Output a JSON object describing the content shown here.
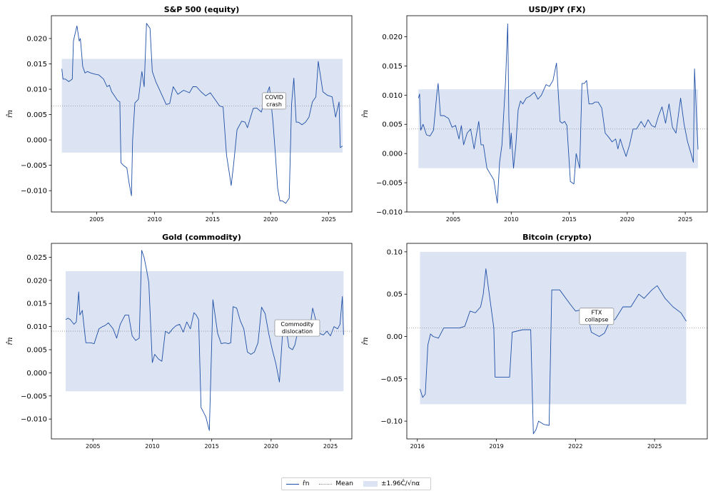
{
  "legend": {
    "series_label": "r̂n",
    "mean_label": "Mean",
    "band_label": "±1.96Ĉ/√nα"
  },
  "colors": {
    "line": "#1f4fa6",
    "band": "#dce4f3",
    "mean": "#8c8c8c"
  },
  "chart_data": [
    {
      "type": "line",
      "title": "S&P 500 (equity)",
      "ylabel": "r̂n",
      "xlim": [
        2001.1,
        2027.0
      ],
      "ylim": [
        -0.0142,
        0.0245
      ],
      "xticks": [
        2005,
        2010,
        2015,
        2020,
        2025
      ],
      "yticks": [
        -0.01,
        -0.005,
        0.0,
        0.005,
        0.01,
        0.015,
        0.02
      ],
      "ytick_labels": [
        "−0.010",
        "−0.005",
        "0.000",
        "0.005",
        "0.010",
        "0.015",
        "0.020"
      ],
      "mean": 0.0067,
      "band": [
        -0.0025,
        0.016
      ],
      "band_x": [
        2002.0,
        2026.2
      ],
      "annotation": {
        "text": [
          "COVID",
          "crash"
        ],
        "x": 2020.3,
        "y": 0.0077
      },
      "series": [
        {
          "x": [
            2002.0,
            2002.1,
            2002.3,
            2002.6,
            2002.9,
            2003.0,
            2003.1,
            2003.3,
            2003.5,
            2003.6,
            2003.8,
            2004.0,
            2004.2,
            2004.5,
            2004.8,
            2005.2,
            2005.6,
            2005.9,
            2006.1,
            2006.3,
            2006.6,
            2006.8,
            2007.0,
            2007.1,
            2007.3,
            2007.6,
            2007.8,
            2008.0,
            2008.1,
            2008.3,
            2008.6,
            2008.9,
            2009.1,
            2009.3,
            2009.6,
            2009.8,
            2010.1,
            2010.5,
            2011.0,
            2011.3,
            2011.6,
            2012.0,
            2012.5,
            2013.0,
            2013.3,
            2013.6,
            2014.0,
            2014.4,
            2014.8,
            2015.2,
            2015.6,
            2015.9,
            2016.2,
            2016.4,
            2016.6,
            2016.8,
            2017.1,
            2017.5,
            2017.8,
            2018.0,
            2018.2,
            2018.5,
            2018.8,
            2019.2,
            2019.5,
            2019.9,
            2020.2,
            2020.4,
            2020.6,
            2020.8,
            2021.0,
            2021.3,
            2021.6,
            2021.8,
            2022.0,
            2022.2,
            2022.4,
            2022.7,
            2023.0,
            2023.3,
            2023.6,
            2023.9,
            2024.1,
            2024.5,
            2024.9,
            2025.3,
            2025.6,
            2025.9,
            2026.0,
            2026.2
          ],
          "values": [
            0.014,
            0.012,
            0.012,
            0.0115,
            0.012,
            0.0195,
            0.0205,
            0.0225,
            0.0195,
            0.02,
            0.0145,
            0.0132,
            0.0135,
            0.0132,
            0.013,
            0.0128,
            0.012,
            0.0105,
            0.0108,
            0.0095,
            0.0085,
            0.0078,
            0.0075,
            -0.0045,
            -0.005,
            -0.0055,
            -0.0085,
            -0.011,
            0.0,
            0.0073,
            0.008,
            0.0135,
            0.0105,
            0.023,
            0.022,
            0.0135,
            0.0115,
            0.0095,
            0.007,
            0.0072,
            0.0105,
            0.009,
            0.0098,
            0.0093,
            0.0105,
            0.0105,
            0.0095,
            0.0087,
            0.0093,
            0.008,
            0.0067,
            0.0065,
            -0.003,
            -0.006,
            -0.009,
            -0.005,
            0.002,
            0.0037,
            0.0035,
            0.0024,
            0.004,
            0.0062,
            0.0063,
            0.0055,
            0.008,
            0.0105,
            0.0035,
            -0.0025,
            -0.0095,
            -0.012,
            -0.012,
            -0.0125,
            -0.0115,
            0.007,
            0.0122,
            0.0035,
            0.0035,
            0.003,
            0.0035,
            0.0045,
            0.0075,
            0.0085,
            0.0155,
            0.0095,
            0.0088,
            0.0085,
            0.0045,
            0.0075,
            -0.0015,
            -0.0012
          ]
        }
      ]
    },
    {
      "type": "line",
      "title": "USD/JPY (FX)",
      "ylabel": "r̂n",
      "xlim": [
        2001.0,
        2026.9
      ],
      "ylim": [
        -0.01,
        0.0236
      ],
      "xticks": [
        2005,
        2010,
        2015,
        2020,
        2025
      ],
      "yticks": [
        -0.01,
        -0.005,
        0.0,
        0.005,
        0.01,
        0.015,
        0.02
      ],
      "ytick_labels": [
        "−0.010",
        "−0.005",
        "0.000",
        "0.005",
        "0.010",
        "0.015",
        "0.020"
      ],
      "mean": 0.0042,
      "band": [
        -0.0025,
        0.011
      ],
      "band_x": [
        2002.0,
        2026.1
      ],
      "annotation": null,
      "series": [
        {
          "x": [
            2002.0,
            2002.1,
            2002.2,
            2002.4,
            2002.7,
            2003.0,
            2003.3,
            2003.6,
            2003.7,
            2003.9,
            2004.2,
            2004.6,
            2004.9,
            2005.2,
            2005.5,
            2005.7,
            2005.9,
            2006.2,
            2006.5,
            2006.8,
            2007.0,
            2007.2,
            2007.4,
            2007.6,
            2007.9,
            2008.2,
            2008.5,
            2008.8,
            2009.0,
            2009.2,
            2009.5,
            2009.7,
            2009.8,
            2009.9,
            2010.0,
            2010.2,
            2010.4,
            2010.6,
            2010.8,
            2011.0,
            2011.3,
            2011.6,
            2012.0,
            2012.3,
            2012.6,
            2013.0,
            2013.3,
            2013.6,
            2013.9,
            2014.2,
            2014.4,
            2014.6,
            2014.8,
            2015.1,
            2015.4,
            2015.6,
            2015.9,
            2016.1,
            2016.3,
            2016.5,
            2016.7,
            2017.0,
            2017.2,
            2017.5,
            2017.8,
            2018.1,
            2018.4,
            2018.7,
            2019.0,
            2019.2,
            2019.4,
            2019.6,
            2019.9,
            2020.2,
            2020.5,
            2020.8,
            2021.2,
            2021.5,
            2021.8,
            2022.1,
            2022.4,
            2022.7,
            2023.0,
            2023.3,
            2023.6,
            2023.9,
            2024.2,
            2024.4,
            2024.6,
            2024.9,
            2025.2,
            2025.5,
            2025.7,
            2025.8,
            2026.0,
            2026.1
          ],
          "values": [
            0.0095,
            0.0102,
            0.004,
            0.005,
            0.0032,
            0.003,
            0.004,
            0.0105,
            0.012,
            0.0065,
            0.0065,
            0.006,
            0.0045,
            0.0048,
            0.0025,
            0.0048,
            0.0015,
            0.0035,
            0.0042,
            0.0008,
            0.0032,
            0.0055,
            0.0015,
            0.0015,
            -0.0025,
            -0.0035,
            -0.0045,
            -0.0085,
            -0.0015,
            0.0015,
            0.012,
            0.0222,
            0.006,
            0.0008,
            0.0035,
            -0.0025,
            0.0015,
            0.0075,
            0.009,
            0.0085,
            0.0095,
            0.0098,
            0.0105,
            0.0093,
            0.01,
            0.0118,
            0.0115,
            0.0125,
            0.0155,
            0.0055,
            0.0052,
            0.0055,
            0.0048,
            -0.0048,
            -0.0052,
            0.0,
            -0.0025,
            0.012,
            0.012,
            0.0125,
            0.0085,
            0.0085,
            0.0088,
            0.0088,
            0.0078,
            0.0035,
            0.0028,
            0.002,
            0.0025,
            0.0008,
            0.0025,
            0.0012,
            -0.0005,
            0.0015,
            0.0042,
            0.0042,
            0.0055,
            0.0045,
            0.0058,
            0.0048,
            0.0045,
            0.0065,
            0.008,
            0.0052,
            0.0085,
            0.0045,
            0.0035,
            0.0065,
            0.0095,
            0.005,
            0.002,
            0.0,
            -0.0015,
            0.0145,
            0.005,
            0.0007
          ]
        }
      ]
    },
    {
      "type": "line",
      "title": "Gold (commodity)",
      "ylabel": "r̂n",
      "xlim": [
        2001.5,
        2026.8
      ],
      "ylim": [
        -0.0143,
        0.028
      ],
      "xticks": [
        2005,
        2010,
        2015,
        2020,
        2025
      ],
      "yticks": [
        -0.01,
        -0.005,
        0.0,
        0.005,
        0.01,
        0.015,
        0.02,
        0.025
      ],
      "ytick_labels": [
        "−0.010",
        "−0.005",
        "0.000",
        "0.005",
        "0.010",
        "0.015",
        "0.020",
        "0.025"
      ],
      "mean": 0.009,
      "band": [
        -0.004,
        0.022
      ],
      "band_x": [
        2002.7,
        2026.1
      ],
      "annotation": {
        "text": [
          "Commodity",
          "dislocation"
        ],
        "x": 2022.2,
        "y": 0.0097
      },
      "series": [
        {
          "x": [
            2002.7,
            2002.9,
            2003.1,
            2003.4,
            2003.6,
            2003.8,
            2003.9,
            2004.1,
            2004.4,
            2004.8,
            2005.1,
            2005.5,
            2005.8,
            2006.0,
            2006.3,
            2006.7,
            2007.0,
            2007.3,
            2007.7,
            2008.0,
            2008.3,
            2008.6,
            2008.9,
            2009.1,
            2009.3,
            2009.5,
            2009.7,
            2010.0,
            2010.2,
            2010.5,
            2010.8,
            2011.1,
            2011.4,
            2011.7,
            2012.0,
            2012.3,
            2012.6,
            2012.9,
            2013.2,
            2013.5,
            2013.7,
            2013.9,
            2014.1,
            2014.3,
            2014.5,
            2014.8,
            2015.1,
            2015.5,
            2015.8,
            2016.1,
            2016.4,
            2016.6,
            2016.8,
            2017.1,
            2017.4,
            2017.7,
            2018.0,
            2018.3,
            2018.6,
            2018.9,
            2019.2,
            2019.5,
            2019.8,
            2020.1,
            2020.4,
            2020.7,
            2021.0,
            2021.3,
            2021.5,
            2021.8,
            2022.0,
            2022.3,
            2022.6,
            2022.9,
            2023.2,
            2023.5,
            2023.8,
            2024.1,
            2024.4,
            2024.7,
            2025.0,
            2025.3,
            2025.6,
            2025.8,
            2026.0,
            2026.1
          ],
          "values": [
            0.0115,
            0.0118,
            0.0115,
            0.0105,
            0.011,
            0.0175,
            0.0125,
            0.0135,
            0.0065,
            0.0065,
            0.0063,
            0.0095,
            0.01,
            0.0102,
            0.0108,
            0.0095,
            0.0075,
            0.0105,
            0.0125,
            0.0125,
            0.008,
            0.007,
            0.0075,
            0.0265,
            0.025,
            0.0225,
            0.0195,
            0.0022,
            0.004,
            0.003,
            0.0025,
            0.009,
            0.0085,
            0.0095,
            0.0102,
            0.0105,
            0.0088,
            0.011,
            0.0095,
            0.013,
            0.0125,
            0.0115,
            -0.0075,
            -0.0085,
            -0.0095,
            -0.0125,
            0.0158,
            0.0085,
            0.0063,
            0.0065,
            0.0063,
            0.0065,
            0.0143,
            0.014,
            0.0113,
            0.0095,
            0.0045,
            0.004,
            0.0045,
            0.0065,
            0.0142,
            0.0128,
            0.0085,
            0.005,
            0.002,
            -0.002,
            0.01,
            0.009,
            0.0055,
            0.005,
            0.006,
            0.0095,
            0.009,
            0.011,
            0.0085,
            0.014,
            0.011,
            0.0085,
            0.0082,
            0.009,
            0.008,
            0.01,
            0.0095,
            0.0105,
            0.0165,
            0.0082
          ]
        }
      ]
    },
    {
      "type": "line",
      "title": "Bitcoin (crypto)",
      "ylabel": "r̂n",
      "xlim": [
        2015.6,
        2027.0
      ],
      "ylim": [
        -0.121,
        0.11
      ],
      "xticks": [
        2016,
        2019,
        2022,
        2025
      ],
      "yticks": [
        -0.1,
        -0.05,
        0.0,
        0.05,
        0.1
      ],
      "ytick_labels": [
        "−0.10",
        "−0.05",
        "0.00",
        "0.05",
        "0.10"
      ],
      "mean": 0.01,
      "band": [
        -0.08,
        0.1
      ],
      "band_x": [
        2016.1,
        2026.2
      ],
      "annotation": {
        "text": [
          "FTX",
          "collapse"
        ],
        "x": 2022.8,
        "y": 0.0238
      },
      "series": [
        {
          "x": [
            2016.1,
            2016.2,
            2016.3,
            2016.4,
            2016.5,
            2016.6,
            2016.8,
            2017.0,
            2017.3,
            2017.6,
            2017.8,
            2018.0,
            2018.2,
            2018.4,
            2018.5,
            2018.6,
            2018.9,
            2018.95,
            2019.5,
            2019.6,
            2020.0,
            2020.3,
            2020.4,
            2020.5,
            2020.6,
            2020.8,
            2021.0,
            2021.1,
            2021.4,
            2021.8,
            2022.0,
            2022.4,
            2022.6,
            2022.9,
            2023.1,
            2023.3,
            2023.5,
            2023.8,
            2024.1,
            2024.4,
            2024.6,
            2024.9,
            2025.1,
            2025.4,
            2025.7,
            2026.0,
            2026.2
          ],
          "values": [
            -0.062,
            -0.072,
            -0.068,
            -0.01,
            0.003,
            0.0,
            -0.002,
            0.01,
            0.01,
            0.01,
            0.012,
            0.03,
            0.028,
            0.035,
            0.05,
            0.08,
            0.01,
            -0.048,
            -0.048,
            0.005,
            0.008,
            0.008,
            -0.115,
            -0.11,
            -0.1,
            -0.104,
            -0.105,
            0.055,
            0.055,
            0.038,
            0.03,
            0.033,
            0.005,
            0.0,
            0.004,
            0.018,
            0.02,
            0.035,
            0.035,
            0.05,
            0.045,
            0.055,
            0.06,
            0.045,
            0.035,
            0.028,
            0.018
          ]
        }
      ]
    }
  ]
}
